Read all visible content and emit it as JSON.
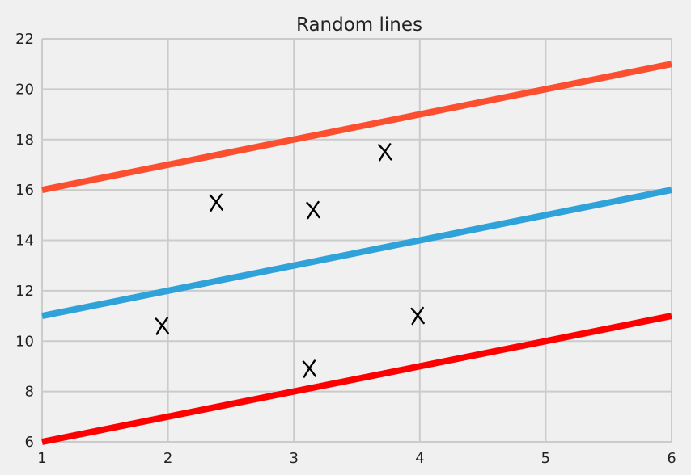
{
  "chart_data": {
    "type": "line",
    "title": "Random lines",
    "xlabel": "",
    "ylabel": "",
    "xlim": [
      1,
      6
    ],
    "ylim": [
      6,
      22
    ],
    "x_ticks": [
      1,
      2,
      3,
      4,
      5,
      6
    ],
    "y_ticks": [
      6,
      8,
      10,
      12,
      14,
      16,
      18,
      20,
      22
    ],
    "grid": true,
    "legend": "none",
    "background_color": "#f0f0f0",
    "series": [
      {
        "x": [
          1,
          6
        ],
        "y": [
          16,
          21
        ],
        "color": "#fc4f30"
      },
      {
        "x": [
          1,
          6
        ],
        "y": [
          11,
          16
        ],
        "color": "#30a2da"
      },
      {
        "x": [
          1,
          6
        ],
        "y": [
          6,
          11
        ],
        "color": "#ff0000"
      }
    ],
    "annotations": {
      "type": "hand-drawn-x-marks",
      "color": "#000000",
      "points": [
        {
          "x": 2.38,
          "y": 15.5
        },
        {
          "x": 3.15,
          "y": 15.2
        },
        {
          "x": 3.72,
          "y": 17.5
        },
        {
          "x": 1.95,
          "y": 10.6
        },
        {
          "x": 3.98,
          "y": 11.0
        },
        {
          "x": 3.12,
          "y": 8.9
        }
      ]
    }
  }
}
